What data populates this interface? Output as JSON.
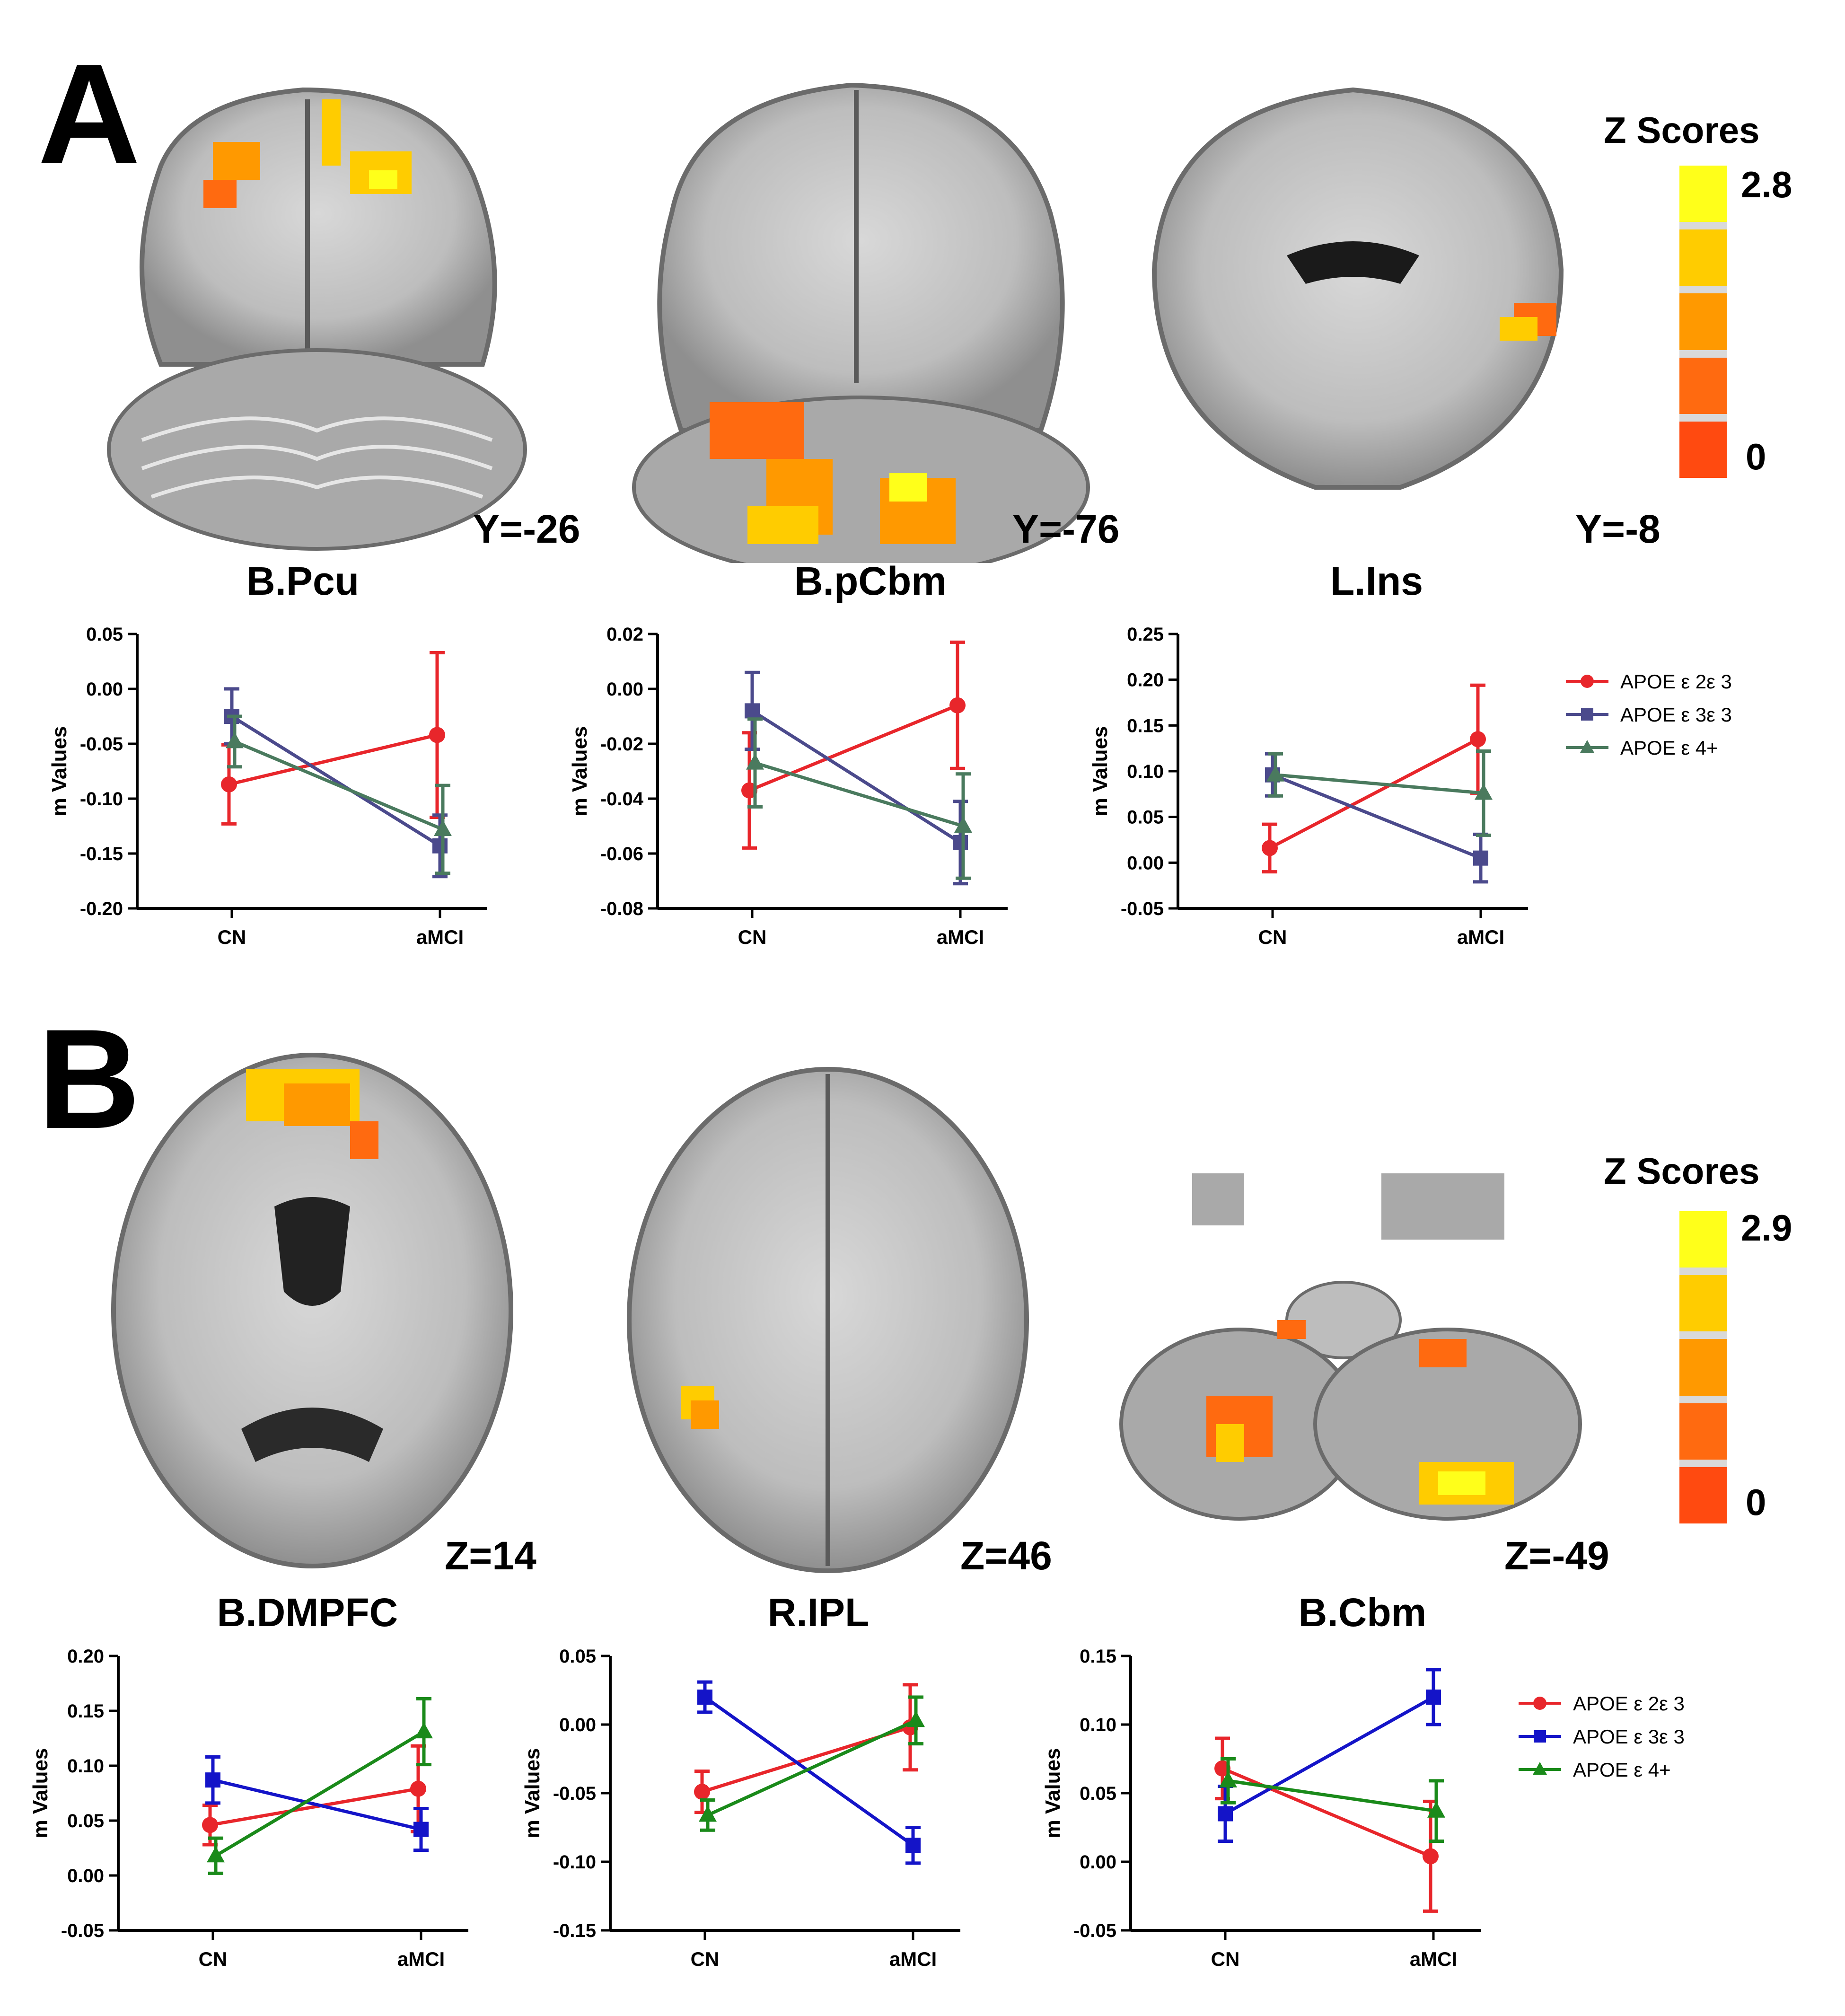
{
  "panels": [
    {
      "letter": "A",
      "colorbar": {
        "title": "Z Scores",
        "max": "2.8",
        "min": "0",
        "colors": [
          "#ffff1a",
          "#ffcc00",
          "#ff9900",
          "#ff6a10",
          "#ff4a10"
        ]
      },
      "images": [
        {
          "region": "B.Pcu",
          "coord": "Y=-26"
        },
        {
          "region": "B.pCbm",
          "coord": "Y=-76"
        },
        {
          "region": "L.Ins",
          "coord": "Y=-8"
        }
      ]
    },
    {
      "letter": "B",
      "colorbar": {
        "title": "Z Scores",
        "max": "2.9",
        "min": "0",
        "colors": [
          "#ffff1a",
          "#ffcc00",
          "#ff9900",
          "#ff6a10",
          "#ff4a10"
        ]
      },
      "images": [
        {
          "region": "B.DMPFC",
          "coord": "Z=14"
        },
        {
          "region": "R.IPL",
          "coord": "Z=46"
        },
        {
          "region": "B.Cbm",
          "coord": "Z=-49"
        }
      ]
    }
  ],
  "chart_data": [
    {
      "type": "line",
      "region": "B.Pcu",
      "categories": [
        "CN",
        "aMCI"
      ],
      "ylabel": "m Values",
      "ylim": [
        -0.2,
        0.05
      ],
      "yticks": [
        "0.05",
        "0.00",
        "-0.05",
        "-0.10",
        "-0.15",
        "-0.20"
      ],
      "series": [
        {
          "name": "APOE ε 2ε 3",
          "color": "#e8262b",
          "marker": "circle",
          "values": [
            -0.087,
            -0.042
          ],
          "err": [
            0.036,
            0.075
          ]
        },
        {
          "name": "APOE ε 3ε 3",
          "color": "#4b4a8c",
          "marker": "square",
          "values": [
            -0.025,
            -0.143
          ],
          "err": [
            0.025,
            0.028
          ]
        },
        {
          "name": "APOE ε 4+",
          "color": "#4a7a5e",
          "marker": "triangle",
          "values": [
            -0.048,
            -0.128
          ],
          "err": [
            0.023,
            0.04
          ]
        }
      ],
      "legend": false
    },
    {
      "type": "line",
      "region": "B.pCbm",
      "categories": [
        "CN",
        "aMCI"
      ],
      "ylabel": "m Values",
      "ylim": [
        -0.08,
        0.02
      ],
      "yticks": [
        "0.02",
        "0.00",
        "-0.02",
        "-0.04",
        "-0.06",
        "-0.08"
      ],
      "series": [
        {
          "name": "APOE ε 2ε 3",
          "color": "#e8262b",
          "marker": "circle",
          "values": [
            -0.037,
            -0.006
          ],
          "err": [
            0.021,
            0.023
          ]
        },
        {
          "name": "APOE ε 3ε 3",
          "color": "#4b4a8c",
          "marker": "square",
          "values": [
            -0.008,
            -0.056
          ],
          "err": [
            0.014,
            0.015
          ]
        },
        {
          "name": "APOE ε 4+",
          "color": "#4a7a5e",
          "marker": "triangle",
          "values": [
            -0.027,
            -0.05
          ],
          "err": [
            0.016,
            0.019
          ]
        }
      ],
      "legend": false
    },
    {
      "type": "line",
      "region": "L.Ins",
      "categories": [
        "CN",
        "aMCI"
      ],
      "ylabel": "m Values",
      "ylim": [
        -0.05,
        0.25
      ],
      "yticks": [
        "0.25",
        "0.20",
        "0.15",
        "0.10",
        "0.05",
        "0.00",
        "-0.05"
      ],
      "series": [
        {
          "name": "APOE ε 2ε 3",
          "color": "#e8262b",
          "marker": "circle",
          "values": [
            0.016,
            0.135
          ],
          "err": [
            0.026,
            0.059
          ]
        },
        {
          "name": "APOE ε 3ε 3",
          "color": "#4b4a8c",
          "marker": "square",
          "values": [
            0.096,
            0.005
          ],
          "err": [
            0.023,
            0.026
          ]
        },
        {
          "name": "APOE ε 4+",
          "color": "#4a7a5e",
          "marker": "triangle",
          "values": [
            0.096,
            0.076
          ],
          "err": [
            0.023,
            0.046
          ]
        }
      ],
      "legend": true
    },
    {
      "type": "line",
      "region": "B.DMPFC",
      "categories": [
        "CN",
        "aMCI"
      ],
      "ylabel": "m Values",
      "ylim": [
        -0.05,
        0.2
      ],
      "yticks": [
        "0.20",
        "0.15",
        "0.10",
        "0.05",
        "0.00",
        "-0.05"
      ],
      "series": [
        {
          "name": "APOE ε 2ε 3",
          "color": "#e8262b",
          "marker": "circle",
          "values": [
            0.046,
            0.079
          ],
          "err": [
            0.018,
            0.039
          ]
        },
        {
          "name": "APOE ε 3ε 3",
          "color": "#1414c8",
          "marker": "square",
          "values": [
            0.087,
            0.042
          ],
          "err": [
            0.021,
            0.019
          ]
        },
        {
          "name": "APOE ε 4+",
          "color": "#1a8a1a",
          "marker": "triangle",
          "values": [
            0.018,
            0.131
          ],
          "err": [
            0.016,
            0.03
          ]
        }
      ],
      "legend": false
    },
    {
      "type": "line",
      "region": "R.IPL",
      "categories": [
        "CN",
        "aMCI"
      ],
      "ylabel": "m Values",
      "ylim": [
        -0.15,
        0.05
      ],
      "yticks": [
        "0.05",
        "0.00",
        "-0.05",
        "-0.10",
        "-0.15"
      ],
      "series": [
        {
          "name": "APOE ε 2ε 3",
          "color": "#e8262b",
          "marker": "circle",
          "values": [
            -0.049,
            -0.002
          ],
          "err": [
            0.015,
            0.031
          ]
        },
        {
          "name": "APOE ε 3ε 3",
          "color": "#1414c8",
          "marker": "square",
          "values": [
            0.02,
            -0.088
          ],
          "err": [
            0.011,
            0.013
          ]
        },
        {
          "name": "APOE ε 4+",
          "color": "#1a8a1a",
          "marker": "triangle",
          "values": [
            -0.066,
            0.003
          ],
          "err": [
            0.011,
            0.017
          ]
        }
      ],
      "legend": false
    },
    {
      "type": "line",
      "region": "B.Cbm",
      "categories": [
        "CN",
        "aMCI"
      ],
      "ylabel": "m Values",
      "ylim": [
        -0.05,
        0.15
      ],
      "yticks": [
        "0.15",
        "0.10",
        "0.05",
        "0.00",
        "-0.05"
      ],
      "series": [
        {
          "name": "APOE ε 2ε 3",
          "color": "#e8262b",
          "marker": "circle",
          "values": [
            0.068,
            0.004
          ],
          "err": [
            0.022,
            0.04
          ]
        },
        {
          "name": "APOE ε 3ε 3",
          "color": "#1414c8",
          "marker": "square",
          "values": [
            0.035,
            0.12
          ],
          "err": [
            0.02,
            0.02
          ]
        },
        {
          "name": "APOE ε 4+",
          "color": "#1a8a1a",
          "marker": "triangle",
          "values": [
            0.059,
            0.037
          ],
          "err": [
            0.016,
            0.022
          ]
        }
      ],
      "legend": true
    }
  ]
}
